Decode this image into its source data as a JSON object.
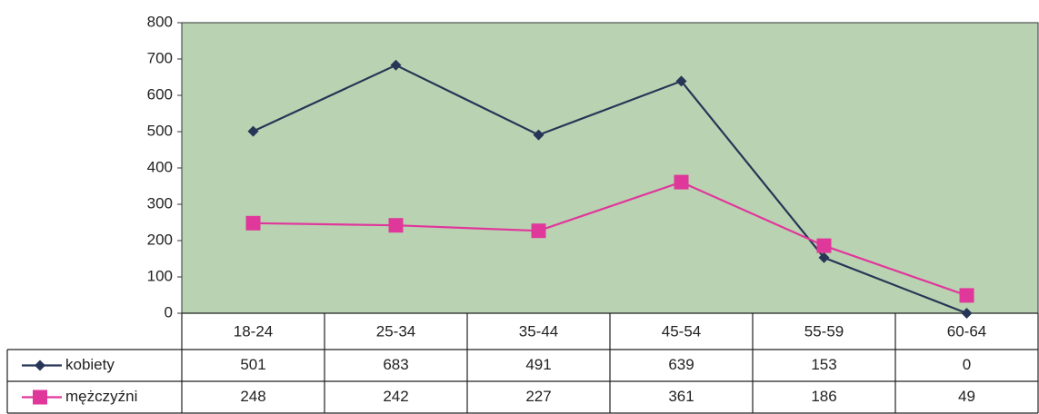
{
  "chart_data": {
    "type": "line",
    "categories": [
      "18-24",
      "25-34",
      "35-44",
      "45-54",
      "55-59",
      "60-64"
    ],
    "series": [
      {
        "name": "kobiety",
        "color": "#263656",
        "marker": "diamond",
        "values": [
          501,
          683,
          491,
          639,
          153,
          0
        ]
      },
      {
        "name": "mężczyźni",
        "color": "#e0379b",
        "marker": "square",
        "values": [
          248,
          242,
          227,
          361,
          186,
          49
        ]
      }
    ],
    "ylim": [
      0,
      800
    ],
    "yticks": [
      0,
      100,
      200,
      300,
      400,
      500,
      600,
      700,
      800
    ],
    "grid": false,
    "background": "#b9d3b2"
  }
}
